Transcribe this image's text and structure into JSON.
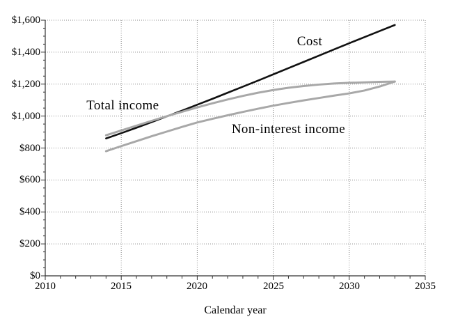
{
  "chart_data": {
    "type": "line",
    "title": "",
    "xlabel": "Calendar year",
    "ylabel": "",
    "xlim": [
      2010,
      2035
    ],
    "ylim": [
      0,
      1600
    ],
    "x_tick_labels": [
      "2010",
      "2015",
      "2020",
      "2025",
      "2030",
      "2035"
    ],
    "y_tick_labels": [
      "$0",
      "$200",
      "$400",
      "$600",
      "$800",
      "$1,000",
      "$1,200",
      "$1,400",
      "$1,600"
    ],
    "x_major_tick_step": 5,
    "x_minor_tick_step": 1,
    "y_major_tick_step": 200,
    "y_minor_tick_step": 50,
    "grid": "dotted",
    "legend_position": "inline-annotations",
    "x": [
      2014,
      2015,
      2016,
      2017,
      2018,
      2019,
      2020,
      2021,
      2022,
      2023,
      2024,
      2025,
      2026,
      2027,
      2028,
      2029,
      2030,
      2031,
      2032,
      2033
    ],
    "series": [
      {
        "name": "Cost",
        "color": "#111111",
        "stroke_width": 2.6,
        "values": [
          860,
          893,
          927,
          962,
          998,
          1034,
          1071,
          1108,
          1146,
          1184,
          1222,
          1261,
          1300,
          1339,
          1378,
          1417,
          1456,
          1494,
          1532,
          1570
        ]
      },
      {
        "name": "Total income",
        "color": "#a8a8a8",
        "stroke_width": 3,
        "values": [
          880,
          910,
          940,
          970,
          999,
          1027,
          1054,
          1080,
          1104,
          1126,
          1146,
          1163,
          1177,
          1188,
          1197,
          1204,
          1208,
          1211,
          1214,
          1216
        ]
      },
      {
        "name": "Non-interest income",
        "color": "#a8a8a8",
        "stroke_width": 3,
        "values": [
          780,
          812,
          843,
          874,
          903,
          932,
          960,
          983,
          1005,
          1026,
          1046,
          1065,
          1082,
          1098,
          1113,
          1128,
          1142,
          1160,
          1185,
          1216
        ]
      }
    ],
    "annotations": [
      {
        "text": "Cost",
        "x": 2027.4,
        "y": 1465
      },
      {
        "text": "Total income",
        "x": 2015.1,
        "y": 1064
      },
      {
        "text": "Non-interest income",
        "x": 2026.0,
        "y": 915
      }
    ],
    "colors": {
      "grid": "#888888",
      "axis": "#333333",
      "text": "#000000",
      "background": "#ffffff"
    }
  }
}
